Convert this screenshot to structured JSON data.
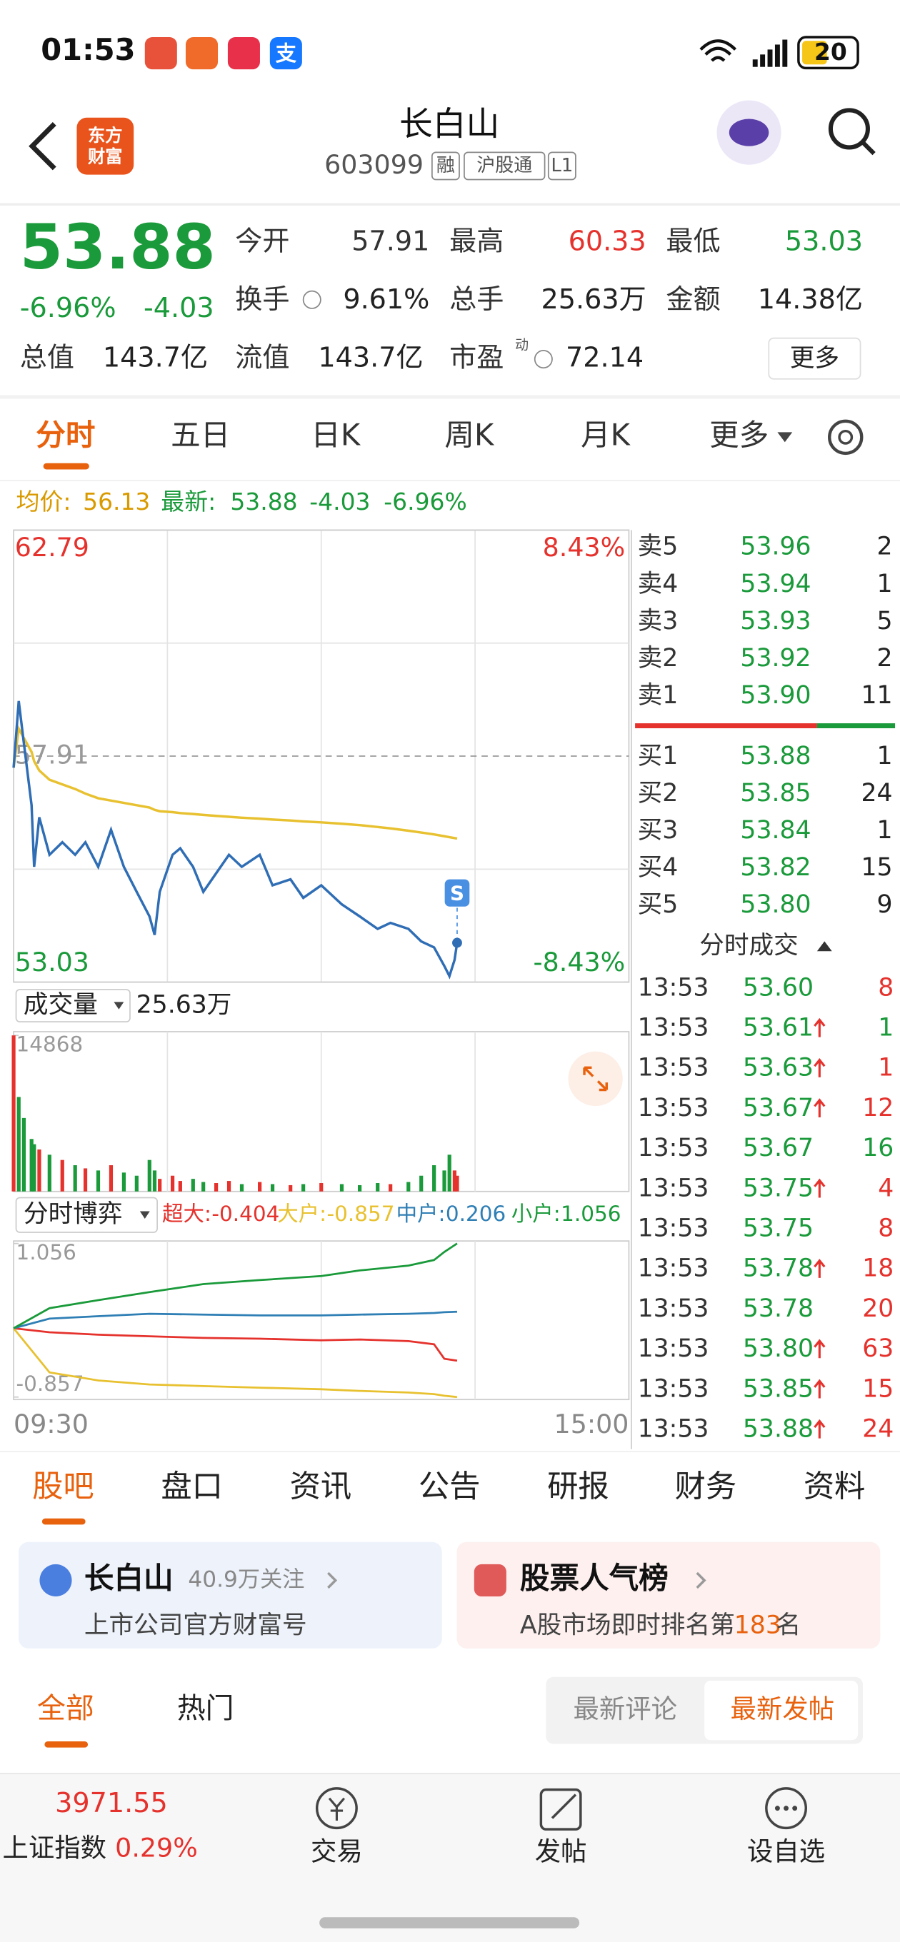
{
  "status_bar": {
    "time": "01:53",
    "app_icon": "支",
    "battery": "20"
  },
  "header": {
    "logo": [
      "东方",
      "财富"
    ],
    "title": "长白山",
    "code": "603099",
    "badges": [
      "融",
      "沪股通",
      "L1"
    ]
  },
  "quote": {
    "price": "53.88",
    "change_pct": "-6.96%",
    "change": "-4.03",
    "fields": [
      {
        "label": "今开",
        "value": "57.91",
        "color": "#333333"
      },
      {
        "label": "最高",
        "value": "60.33",
        "color": "#e5322d"
      },
      {
        "label": "最低",
        "value": "53.03",
        "color": "#1a9a3a"
      },
      {
        "label": "换手",
        "value": "9.61%",
        "color": "#222222"
      },
      {
        "label": "总手",
        "value": "25.63万",
        "color": "#222222"
      },
      {
        "label": "金额",
        "value": "14.38亿",
        "color": "#222222"
      },
      {
        "label": "总值",
        "value": "143.7亿",
        "color": "#222222"
      },
      {
        "label": "流值",
        "value": "143.7亿",
        "color": "#222222"
      },
      {
        "label": "市盈",
        "value": "72.14",
        "color": "#222222"
      }
    ],
    "pe_sup": "动",
    "more": "更多"
  },
  "chart_tabs": {
    "items": [
      "分时",
      "五日",
      "日K",
      "周K",
      "月K",
      "更多"
    ],
    "active": 0
  },
  "info_line": {
    "avg_label": "均价:",
    "avg": "56.13",
    "last_label": "最新:",
    "last": "53.88",
    "change": "-4.03",
    "change_pct": "-6.96%"
  },
  "chart_data": [
    {
      "type": "line",
      "x": [
        "09:30",
        "09:32",
        "09:34",
        "09:37",
        "09:38",
        "09:40",
        "09:44",
        "09:49",
        "09:54",
        "09:58",
        "10:03",
        "10:08",
        "10:13",
        "10:18",
        "10:23",
        "10:25",
        "10:27",
        "10:32",
        "10:35",
        "10:40",
        "10:44",
        "10:49",
        "10:54",
        "10:59",
        "11:06",
        "11:11",
        "11:18",
        "11:23",
        "11:30",
        "13:08",
        "13:15",
        "13:22",
        "13:27",
        "13:34",
        "13:39",
        "13:44",
        "13:48",
        "13:50",
        "13:52",
        "13:53"
      ],
      "series": [
        {
          "color": "#2f6db5",
          "values": [
            57.66,
            59.1,
            58.19,
            56.85,
            55.52,
            56.59,
            55.78,
            56.05,
            55.78,
            56.05,
            55.52,
            56.32,
            55.52,
            54.98,
            54.45,
            54.05,
            54.98,
            55.78,
            55.92,
            55.52,
            54.98,
            55.38,
            55.78,
            55.52,
            55.78,
            55.12,
            55.25,
            54.85,
            55.12,
            54.71,
            54.45,
            54.18,
            54.31,
            54.18,
            53.91,
            53.78,
            53.38,
            53.16,
            53.51,
            53.88
          ]
        },
        {
          "color": "#e8c130",
          "values": [
            57.66,
            58.5,
            58.3,
            58.0,
            57.8,
            57.6,
            57.4,
            57.3,
            57.2,
            57.1,
            57.0,
            56.95,
            56.9,
            56.85,
            56.8,
            56.75,
            56.72,
            56.7,
            56.68,
            56.66,
            56.64,
            56.62,
            56.6,
            56.58,
            56.56,
            56.54,
            56.52,
            56.5,
            56.48,
            56.45,
            56.42,
            56.38,
            56.35,
            56.3,
            56.26,
            56.22,
            56.18,
            56.16,
            56.14,
            56.13
          ]
        }
      ],
      "ylim": [
        53.03,
        62.79
      ],
      "yticks": [
        53.03,
        57.91,
        62.79
      ],
      "y2lim": [
        -8.43,
        8.43
      ],
      "y2ticks": [
        {
          "value": -8.43,
          "label": "-8.43%"
        },
        {
          "value": 8.43,
          "label": "8.43%"
        }
      ],
      "xticks": [
        "09:30",
        "15:00"
      ],
      "marker_label": "S"
    },
    {
      "type": "bar",
      "header": "成交量",
      "total": "25.63万",
      "x": [
        "09:30",
        "09:32",
        "09:34",
        "09:37",
        "09:38",
        "09:40",
        "09:44",
        "09:49",
        "09:54",
        "09:58",
        "10:03",
        "10:08",
        "10:13",
        "10:18",
        "10:23",
        "10:25",
        "10:27",
        "10:32",
        "10:35",
        "10:40",
        "10:44",
        "10:49",
        "10:54",
        "10:59",
        "11:06",
        "11:11",
        "11:18",
        "11:23",
        "11:30",
        "13:08",
        "13:15",
        "13:22",
        "13:27",
        "13:34",
        "13:39",
        "13:44",
        "13:48",
        "13:50",
        "13:52",
        "13:53"
      ],
      "values": [
        14868,
        9000,
        7000,
        5000,
        4500,
        4000,
        3500,
        3000,
        2500,
        2200,
        2000,
        2500,
        1800,
        1500,
        3000,
        2000,
        1200,
        1500,
        1000,
        1200,
        900,
        800,
        1000,
        700,
        900,
        700,
        600,
        700,
        800,
        700,
        600,
        800,
        700,
        900,
        1500,
        2500,
        2000,
        3500,
        2000,
        1500
      ],
      "bar_colors": [
        "#e5322d",
        "#1a9a3a",
        "#1a9a3a",
        "#1a9a3a",
        "#1a9a3a",
        "#e5322d",
        "#1a9a3a",
        "#e5322d",
        "#1a9a3a",
        "#e5322d",
        "#1a9a3a",
        "#e5322d",
        "#1a9a3a",
        "#1a9a3a",
        "#1a9a3a",
        "#1a9a3a",
        "#e5322d",
        "#e5322d",
        "#e5322d",
        "#1a9a3a",
        "#1a9a3a",
        "#e5322d",
        "#e5322d",
        "#1a9a3a",
        "#e5322d",
        "#1a9a3a",
        "#e5322d",
        "#1a9a3a",
        "#e5322d",
        "#1a9a3a",
        "#1a9a3a",
        "#1a9a3a",
        "#e5322d",
        "#1a9a3a",
        "#1a9a3a",
        "#1a9a3a",
        "#1a9a3a",
        "#1a9a3a",
        "#e5322d",
        "#e5322d"
      ],
      "ylim": [
        0,
        14868
      ],
      "yticks": [
        14868
      ]
    },
    {
      "type": "line",
      "header": "分时博弈",
      "x": [
        "09:30",
        "09:44",
        "10:03",
        "10:23",
        "10:44",
        "11:06",
        "11:30",
        "13:15",
        "13:34",
        "13:44",
        "13:48",
        "13:53"
      ],
      "series": [
        {
          "name": "超大:",
          "color": "#e5322d",
          "values": [
            0,
            -0.05,
            -0.08,
            -0.1,
            -0.12,
            -0.13,
            -0.15,
            -0.14,
            -0.16,
            -0.2,
            -0.38,
            -0.404
          ]
        },
        {
          "name": "大户:",
          "color": "#e8c130",
          "values": [
            0,
            -0.55,
            -0.65,
            -0.7,
            -0.72,
            -0.74,
            -0.76,
            -0.78,
            -0.8,
            -0.82,
            -0.84,
            -0.857
          ]
        },
        {
          "name": "中户:",
          "color": "#2f7fb5",
          "values": [
            0,
            0.12,
            0.15,
            0.18,
            0.17,
            0.16,
            0.16,
            0.17,
            0.18,
            0.19,
            0.2,
            0.206
          ]
        },
        {
          "name": "小户:",
          "color": "#1a9a3a",
          "values": [
            0,
            0.25,
            0.35,
            0.45,
            0.55,
            0.6,
            0.65,
            0.72,
            0.78,
            0.85,
            0.95,
            1.056
          ]
        }
      ],
      "ylim": [
        -0.857,
        1.056
      ],
      "yticks": [
        -0.857,
        1.056
      ]
    }
  ],
  "order_book": {
    "asks": [
      {
        "label": "卖5",
        "price": "53.96",
        "qty": "2"
      },
      {
        "label": "卖4",
        "price": "53.94",
        "qty": "1"
      },
      {
        "label": "卖3",
        "price": "53.93",
        "qty": "5"
      },
      {
        "label": "卖2",
        "price": "53.92",
        "qty": "2"
      },
      {
        "label": "卖1",
        "price": "53.90",
        "qty": "11"
      }
    ],
    "bids": [
      {
        "label": "买1",
        "price": "53.88",
        "qty": "1"
      },
      {
        "label": "买2",
        "price": "53.85",
        "qty": "24"
      },
      {
        "label": "买3",
        "price": "53.84",
        "qty": "1"
      },
      {
        "label": "买4",
        "price": "53.82",
        "qty": "15"
      },
      {
        "label": "买5",
        "price": "53.80",
        "qty": "9"
      }
    ]
  },
  "trades": {
    "title": "分时成交",
    "rows": [
      {
        "time": "13:53",
        "price": "53.60",
        "up": false,
        "qty": "8",
        "color": "#e5322d"
      },
      {
        "time": "13:53",
        "price": "53.61",
        "up": true,
        "qty": "1",
        "color": "#1a9a3a"
      },
      {
        "time": "13:53",
        "price": "53.63",
        "up": true,
        "qty": "1",
        "color": "#e5322d"
      },
      {
        "time": "13:53",
        "price": "53.67",
        "up": true,
        "qty": "12",
        "color": "#e5322d"
      },
      {
        "time": "13:53",
        "price": "53.67",
        "up": false,
        "qty": "16",
        "color": "#1a9a3a"
      },
      {
        "time": "13:53",
        "price": "53.75",
        "up": true,
        "qty": "4",
        "color": "#e5322d"
      },
      {
        "time": "13:53",
        "price": "53.75",
        "up": false,
        "qty": "8",
        "color": "#e5322d"
      },
      {
        "time": "13:53",
        "price": "53.78",
        "up": true,
        "qty": "18",
        "color": "#e5322d"
      },
      {
        "time": "13:53",
        "price": "53.78",
        "up": false,
        "qty": "20",
        "color": "#e5322d"
      },
      {
        "time": "13:53",
        "price": "53.80",
        "up": true,
        "qty": "63",
        "color": "#e5322d"
      },
      {
        "time": "13:53",
        "price": "53.85",
        "up": true,
        "qty": "15",
        "color": "#e5322d"
      },
      {
        "time": "13:53",
        "price": "53.88",
        "up": true,
        "qty": "24",
        "color": "#e5322d"
      }
    ]
  },
  "section_tabs": {
    "items": [
      "股吧",
      "盘口",
      "资讯",
      "公告",
      "研报",
      "财务",
      "资料"
    ],
    "active": 0
  },
  "cards": [
    {
      "title": "长白山",
      "followers": "40.9万关注",
      "subtitle": "上市公司官方财富号"
    },
    {
      "title": "股票人气榜",
      "subtitle_parts": [
        "A股市场即时排名第",
        "183",
        "名"
      ]
    }
  ],
  "filters": {
    "left": [
      "全部",
      "热门"
    ],
    "left_active": 0,
    "right": [
      "最新评论",
      "最新发帖"
    ],
    "right_active": 1
  },
  "bottom_nav": {
    "index_value": "3971.55",
    "index_name": "上证指数",
    "index_change": "0.29%",
    "items": [
      "交易",
      "发帖",
      "设自选"
    ]
  }
}
